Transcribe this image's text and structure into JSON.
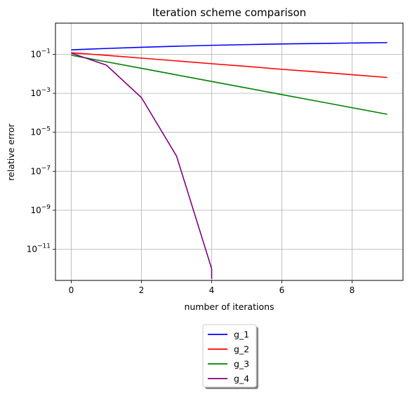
{
  "chart_data": {
    "type": "line",
    "title": "Iteration scheme comparison",
    "xlabel": "number of iterations",
    "ylabel": "relative error",
    "xscale": "linear",
    "yscale": "log",
    "xlim": [
      -0.45,
      9.45
    ],
    "ylim_log10": [
      -12.6,
      0.6
    ],
    "xticks": [
      0,
      2,
      4,
      6,
      8
    ],
    "xtick_labels": [
      "0",
      "2",
      "4",
      "6",
      "8"
    ],
    "yticks_log10": [
      -11,
      -9,
      -7,
      -5,
      -3,
      -1
    ],
    "ytick_labels": [
      {
        "base": "10",
        "exp": "−11"
      },
      {
        "base": "10",
        "exp": "−9"
      },
      {
        "base": "10",
        "exp": "−7"
      },
      {
        "base": "10",
        "exp": "−5"
      },
      {
        "base": "10",
        "exp": "−3"
      },
      {
        "base": "10",
        "exp": "−1"
      }
    ],
    "grid": true,
    "legend_placement": "below plot, center",
    "series": [
      {
        "name": "g_1",
        "color": "#0000ff",
        "x": [
          0,
          1,
          2,
          3,
          4,
          5,
          6,
          7,
          8,
          9
        ],
        "y": [
          0.17,
          0.2,
          0.23,
          0.26,
          0.29,
          0.315,
          0.34,
          0.36,
          0.38,
          0.4
        ]
      },
      {
        "name": "g_2",
        "color": "#ff0000",
        "x": [
          0,
          1,
          2,
          3,
          4,
          5,
          6,
          7,
          8,
          9
        ],
        "y": [
          0.12,
          0.089,
          0.064,
          0.046,
          0.033,
          0.024,
          0.017,
          0.0125,
          0.009,
          0.0065
        ]
      },
      {
        "name": "g_3",
        "color": "#008000",
        "x": [
          0,
          1,
          2,
          3,
          4,
          5,
          6,
          7,
          8,
          9
        ],
        "y": [
          0.09,
          0.0415,
          0.0191,
          0.0088,
          0.00405,
          0.00187,
          0.00086,
          0.000397,
          0.000183,
          8.4e-05
        ]
      },
      {
        "name": "g_4",
        "color": "#800080",
        "x": [
          0,
          1,
          2,
          3,
          4,
          4
        ],
        "y": [
          0.115,
          0.028,
          0.0006,
          6e-07,
          1e-12,
          3e-13
        ]
      }
    ]
  }
}
